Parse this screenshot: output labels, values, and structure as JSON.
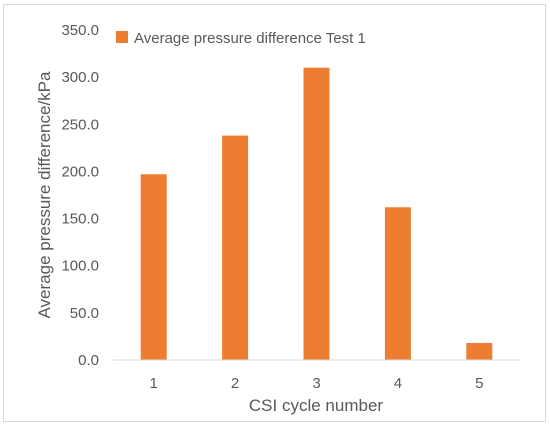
{
  "chart_data": {
    "type": "bar",
    "categories": [
      "1",
      "2",
      "3",
      "4",
      "5"
    ],
    "series": [
      {
        "name": "Average pressure difference Test 1",
        "values": [
          197,
          238,
          310,
          162,
          18
        ]
      }
    ],
    "xlabel": "CSI cycle number",
    "ylabel": "Average pressure difference/kPa",
    "ylim": [
      0,
      350
    ],
    "yticks": [
      "0.0",
      "50.0",
      "100.0",
      "150.0",
      "200.0",
      "250.0",
      "300.0",
      "350.0"
    ],
    "grid": false,
    "legend": "top-left",
    "bar_color": "#ed7d31"
  }
}
